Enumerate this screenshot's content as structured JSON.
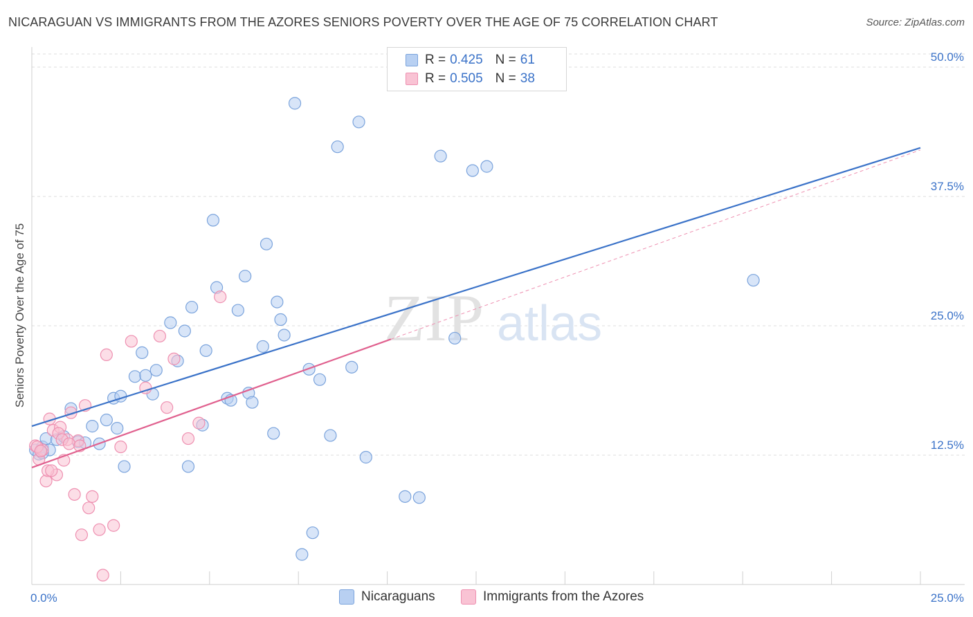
{
  "title": "NICARAGUAN VS IMMIGRANTS FROM THE AZORES SENIORS POVERTY OVER THE AGE OF 75 CORRELATION CHART",
  "source": "Source: ZipAtlas.com",
  "watermark": {
    "zip": "ZIP",
    "atlas": "atlas"
  },
  "legend": {
    "rows": [
      {
        "r_label": "R =",
        "r_value": "0.425",
        "n_label": "N =",
        "n_value": "61"
      },
      {
        "r_label": "R =",
        "r_value": "0.505",
        "n_label": "N =",
        "n_value": "38"
      }
    ]
  },
  "bottom_legend": {
    "series1": "Nicaraguans",
    "series2": "Immigrants from the Azores"
  },
  "colors": {
    "blue_fill": "#b8d0f2",
    "blue_stroke": "#7aa3dc",
    "blue_line": "#3a72c8",
    "pink_fill": "#f9c3d4",
    "pink_stroke": "#ee8fb0",
    "pink_line": "#e0608e",
    "axis_label": "#3a72c8",
    "grid": "#dcdcdc"
  },
  "chart_data": {
    "type": "scatter",
    "title": "NICARAGUAN VS IMMIGRANTS FROM THE AZORES SENIORS POVERTY OVER THE AGE OF 75 CORRELATION CHART",
    "xlabel": "",
    "ylabel": "Seniors Poverty Over the Age of 75",
    "xlim": [
      0,
      25
    ],
    "ylim": [
      0,
      50
    ],
    "x_tick_labels": [
      "0.0%",
      "25.0%"
    ],
    "y_ticks": [
      12.5,
      25.0,
      37.5,
      50.0
    ],
    "y_tick_labels": [
      "12.5%",
      "25.0%",
      "37.5%",
      "50.0%"
    ],
    "series": [
      {
        "name": "Nicaraguans",
        "color": "#b8d0f2",
        "points": [
          [
            0.1,
            13.0
          ],
          [
            0.2,
            12.6
          ],
          [
            0.3,
            13.3
          ],
          [
            0.4,
            14.1
          ],
          [
            0.5,
            13.0
          ],
          [
            0.7,
            14.0
          ],
          [
            0.9,
            14.3
          ],
          [
            1.1,
            17.0
          ],
          [
            1.3,
            13.8
          ],
          [
            1.5,
            13.7
          ],
          [
            1.7,
            15.3
          ],
          [
            1.9,
            13.6
          ],
          [
            2.1,
            15.9
          ],
          [
            2.3,
            18.0
          ],
          [
            2.4,
            15.1
          ],
          [
            2.5,
            18.2
          ],
          [
            2.6,
            11.4
          ],
          [
            2.9,
            20.1
          ],
          [
            3.1,
            22.4
          ],
          [
            3.2,
            20.2
          ],
          [
            3.4,
            18.4
          ],
          [
            3.5,
            20.7
          ],
          [
            3.9,
            25.3
          ],
          [
            4.1,
            21.6
          ],
          [
            4.3,
            24.5
          ],
          [
            4.4,
            11.4
          ],
          [
            4.5,
            26.8
          ],
          [
            4.8,
            15.4
          ],
          [
            4.9,
            22.6
          ],
          [
            5.1,
            35.2
          ],
          [
            5.2,
            28.7
          ],
          [
            5.5,
            18.0
          ],
          [
            5.6,
            17.8
          ],
          [
            5.8,
            26.5
          ],
          [
            6.0,
            29.8
          ],
          [
            6.1,
            18.5
          ],
          [
            6.2,
            17.6
          ],
          [
            6.5,
            23.0
          ],
          [
            6.6,
            32.9
          ],
          [
            6.8,
            14.6
          ],
          [
            6.9,
            27.3
          ],
          [
            7.0,
            25.6
          ],
          [
            7.1,
            24.1
          ],
          [
            7.4,
            46.5
          ],
          [
            7.6,
            2.9
          ],
          [
            7.8,
            20.8
          ],
          [
            7.9,
            5.0
          ],
          [
            8.1,
            19.8
          ],
          [
            8.4,
            14.4
          ],
          [
            8.6,
            42.3
          ],
          [
            9.0,
            21.0
          ],
          [
            9.2,
            44.7
          ],
          [
            9.4,
            12.3
          ],
          [
            10.5,
            8.5
          ],
          [
            10.9,
            8.4
          ],
          [
            11.5,
            41.4
          ],
          [
            11.9,
            23.8
          ],
          [
            12.4,
            40.0
          ],
          [
            12.8,
            40.4
          ],
          [
            20.3,
            29.4
          ],
          [
            0.3,
            12.7
          ]
        ]
      },
      {
        "name": "Immigrants from the Azores",
        "color": "#f9c3d4",
        "points": [
          [
            0.1,
            13.4
          ],
          [
            0.2,
            12.1
          ],
          [
            0.3,
            13.0
          ],
          [
            0.4,
            10.0
          ],
          [
            0.5,
            16.0
          ],
          [
            0.6,
            14.9
          ],
          [
            0.7,
            10.6
          ],
          [
            0.8,
            15.2
          ],
          [
            0.9,
            12.0
          ],
          [
            1.0,
            14.0
          ],
          [
            1.1,
            16.6
          ],
          [
            1.2,
            8.7
          ],
          [
            1.3,
            13.9
          ],
          [
            1.4,
            4.8
          ],
          [
            1.5,
            17.3
          ],
          [
            1.6,
            7.4
          ],
          [
            1.7,
            8.5
          ],
          [
            1.9,
            5.3
          ],
          [
            2.0,
            0.9
          ],
          [
            2.1,
            22.2
          ],
          [
            2.3,
            5.7
          ],
          [
            2.5,
            13.3
          ],
          [
            2.8,
            23.5
          ],
          [
            3.2,
            19.0
          ],
          [
            3.6,
            24.0
          ],
          [
            3.8,
            17.1
          ],
          [
            4.0,
            21.8
          ],
          [
            4.4,
            14.1
          ],
          [
            4.7,
            15.6
          ],
          [
            5.3,
            27.8
          ],
          [
            0.15,
            13.3
          ],
          [
            0.25,
            12.9
          ],
          [
            0.45,
            11.0
          ],
          [
            0.55,
            11.0
          ],
          [
            0.75,
            14.6
          ],
          [
            0.85,
            14.0
          ],
          [
            1.05,
            13.6
          ],
          [
            1.35,
            13.4
          ]
        ]
      }
    ],
    "trendlines": [
      {
        "series": "Nicaraguans",
        "from": [
          0,
          15.3
        ],
        "to": [
          25,
          42.2
        ],
        "extension": [
          21.1,
          38.0,
          25,
          42.4
        ]
      },
      {
        "series": "Immigrants from the Azores",
        "from": [
          0,
          11.3
        ],
        "to": [
          10.1,
          23.7
        ]
      }
    ]
  }
}
